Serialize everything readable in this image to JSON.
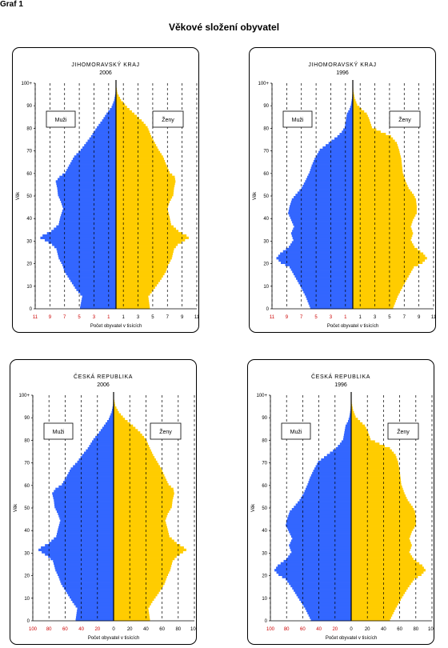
{
  "page": {
    "label": "Graf 1",
    "title": "Věkové složení obyvatel"
  },
  "colors": {
    "men": "#3366ff",
    "women": "#ffcc00",
    "axis": "#000000",
    "grid": "#000000",
    "tick_label_left": "#cc0000"
  },
  "chart_data": [
    {
      "type": "population-pyramid",
      "title": "JIHOMORAVSKÝ KRAJ",
      "subtitle": "2006",
      "xlabel": "Počet obyvatel v tisících",
      "ylabel": "Věk",
      "unit": "thousands",
      "xlim": [
        -11,
        11
      ],
      "xticks": [
        -11,
        -9,
        -7,
        -5,
        -3,
        -1,
        1,
        3,
        5,
        7,
        9,
        11
      ],
      "xtick_labels": [
        "11",
        "9",
        "7",
        "5",
        "3",
        "1",
        "1",
        "3",
        "5",
        "7",
        "9",
        "11"
      ],
      "ylim": [
        0,
        100
      ],
      "yticks": [
        0,
        10,
        20,
        30,
        40,
        50,
        60,
        70,
        80,
        90,
        100
      ],
      "ytick_labels": [
        "0",
        "10",
        "20",
        "30",
        "40",
        "50",
        "60",
        "70",
        "80",
        "90",
        "100+"
      ],
      "grid": "vertical dashed",
      "legend": {
        "men": "Muži",
        "women": "Ženy"
      },
      "men": [
        [
          0,
          4.9
        ],
        [
          5,
          4.6
        ],
        [
          8,
          5.4
        ],
        [
          12,
          6.2
        ],
        [
          16,
          7.0
        ],
        [
          19,
          7.3
        ],
        [
          22,
          7.8
        ],
        [
          26,
          8.1
        ],
        [
          28,
          8.7
        ],
        [
          30,
          9.7
        ],
        [
          31,
          10.3
        ],
        [
          32,
          10.0
        ],
        [
          34,
          8.8
        ],
        [
          37,
          7.8
        ],
        [
          40,
          7.6
        ],
        [
          44,
          7.2
        ],
        [
          47,
          7.5
        ],
        [
          50,
          7.9
        ],
        [
          53,
          8.0
        ],
        [
          56,
          8.2
        ],
        [
          58,
          7.7
        ],
        [
          60,
          6.9
        ],
        [
          63,
          6.4
        ],
        [
          67,
          5.7
        ],
        [
          70,
          4.8
        ],
        [
          73,
          4.1
        ],
        [
          76,
          3.4
        ],
        [
          80,
          2.6
        ],
        [
          83,
          1.9
        ],
        [
          86,
          1.3
        ],
        [
          89,
          0.6
        ],
        [
          92,
          0.25
        ],
        [
          95,
          0.08
        ],
        [
          98,
          0.02
        ],
        [
          100,
          0.01
        ]
      ],
      "women": [
        [
          0,
          4.6
        ],
        [
          5,
          4.4
        ],
        [
          8,
          5.1
        ],
        [
          12,
          6.0
        ],
        [
          16,
          6.8
        ],
        [
          19,
          7.1
        ],
        [
          22,
          7.6
        ],
        [
          26,
          7.9
        ],
        [
          28,
          8.4
        ],
        [
          30,
          9.4
        ],
        [
          31,
          9.9
        ],
        [
          32,
          9.6
        ],
        [
          34,
          8.5
        ],
        [
          37,
          7.5
        ],
        [
          40,
          7.3
        ],
        [
          44,
          7.0
        ],
        [
          47,
          7.3
        ],
        [
          50,
          7.8
        ],
        [
          53,
          7.9
        ],
        [
          56,
          8.1
        ],
        [
          58,
          8.0
        ],
        [
          60,
          7.3
        ],
        [
          63,
          6.9
        ],
        [
          67,
          6.4
        ],
        [
          70,
          5.8
        ],
        [
          73,
          5.3
        ],
        [
          76,
          4.8
        ],
        [
          80,
          4.3
        ],
        [
          83,
          3.5
        ],
        [
          86,
          2.5
        ],
        [
          89,
          1.5
        ],
        [
          92,
          0.7
        ],
        [
          95,
          0.2
        ],
        [
          98,
          0.05
        ],
        [
          100,
          0.02
        ]
      ]
    },
    {
      "type": "population-pyramid",
      "title": "JIHOMORAVSKÝ KRAJ",
      "subtitle": "1996",
      "xlabel": "Počet obyvatel v tisících",
      "ylabel": "Věk",
      "unit": "thousands",
      "xlim": [
        -11,
        11
      ],
      "xticks": [
        -11,
        -9,
        -7,
        -5,
        -3,
        -1,
        1,
        3,
        5,
        7,
        9,
        11
      ],
      "xtick_labels": [
        "11",
        "9",
        "7",
        "5",
        "3",
        "1",
        "1",
        "3",
        "5",
        "7",
        "9",
        "11"
      ],
      "ylim": [
        0,
        100
      ],
      "yticks": [
        0,
        10,
        20,
        30,
        40,
        50,
        60,
        70,
        80,
        90,
        100
      ],
      "ytick_labels": [
        "0",
        "10",
        "20",
        "30",
        "40",
        "50",
        "60",
        "70",
        "80",
        "90",
        "100+"
      ],
      "grid": "vertical dashed",
      "legend": {
        "men": "Muži",
        "women": "Ženy"
      },
      "men": [
        [
          0,
          5.8
        ],
        [
          5,
          6.4
        ],
        [
          10,
          7.2
        ],
        [
          14,
          7.9
        ],
        [
          18,
          8.6
        ],
        [
          20,
          9.8
        ],
        [
          22,
          10.4
        ],
        [
          24,
          9.9
        ],
        [
          27,
          8.7
        ],
        [
          30,
          8.1
        ],
        [
          33,
          8.4
        ],
        [
          36,
          8.0
        ],
        [
          39,
          8.4
        ],
        [
          42,
          8.8
        ],
        [
          45,
          8.6
        ],
        [
          48,
          8.3
        ],
        [
          50,
          7.8
        ],
        [
          53,
          7.0
        ],
        [
          56,
          6.5
        ],
        [
          60,
          5.9
        ],
        [
          63,
          5.6
        ],
        [
          66,
          5.2
        ],
        [
          70,
          4.5
        ],
        [
          73,
          3.3
        ],
        [
          76,
          2.1
        ],
        [
          78,
          1.5
        ],
        [
          80,
          1.1
        ],
        [
          82,
          1.0
        ],
        [
          84,
          0.9
        ],
        [
          86,
          0.8
        ],
        [
          88,
          0.45
        ],
        [
          90,
          0.25
        ],
        [
          93,
          0.1
        ],
        [
          96,
          0.03
        ],
        [
          100,
          0.01
        ]
      ],
      "women": [
        [
          0,
          5.5
        ],
        [
          5,
          6.1
        ],
        [
          10,
          6.9
        ],
        [
          14,
          7.6
        ],
        [
          18,
          8.3
        ],
        [
          20,
          9.5
        ],
        [
          22,
          10.1
        ],
        [
          24,
          9.6
        ],
        [
          27,
          8.4
        ],
        [
          30,
          7.9
        ],
        [
          33,
          8.2
        ],
        [
          36,
          7.9
        ],
        [
          39,
          8.2
        ],
        [
          42,
          8.7
        ],
        [
          45,
          8.7
        ],
        [
          48,
          8.6
        ],
        [
          50,
          8.3
        ],
        [
          53,
          7.6
        ],
        [
          56,
          7.2
        ],
        [
          60,
          6.8
        ],
        [
          63,
          6.7
        ],
        [
          66,
          6.6
        ],
        [
          70,
          6.3
        ],
        [
          73,
          6.0
        ],
        [
          76,
          5.2
        ],
        [
          78,
          3.8
        ],
        [
          80,
          2.6
        ],
        [
          82,
          2.4
        ],
        [
          84,
          2.2
        ],
        [
          86,
          1.9
        ],
        [
          88,
          1.2
        ],
        [
          90,
          0.6
        ],
        [
          93,
          0.25
        ],
        [
          96,
          0.08
        ],
        [
          100,
          0.02
        ]
      ]
    },
    {
      "type": "population-pyramid",
      "title": "ČESKÁ REPUBLIKA",
      "subtitle": "2006",
      "xlabel": "Počet obyvatel v tisících",
      "ylabel": "Věk",
      "unit": "thousands",
      "xlim": [
        -100,
        100
      ],
      "xticks": [
        -100,
        -80,
        -60,
        -40,
        -20,
        0,
        20,
        40,
        60,
        80,
        100
      ],
      "xtick_labels": [
        "100",
        "80",
        "60",
        "40",
        "20",
        "0",
        "20",
        "40",
        "60",
        "80",
        "100"
      ],
      "ylim": [
        0,
        100
      ],
      "yticks": [
        0,
        10,
        20,
        30,
        40,
        50,
        60,
        70,
        80,
        90,
        100
      ],
      "ytick_labels": [
        "0",
        "10",
        "20",
        "30",
        "40",
        "50",
        "60",
        "70",
        "80",
        "90",
        "100+"
      ],
      "grid": "vertical dashed",
      "legend": {
        "men": "Muži",
        "women": "Ženy"
      },
      "men": [
        [
          0,
          47
        ],
        [
          5,
          45
        ],
        [
          8,
          51
        ],
        [
          12,
          58
        ],
        [
          16,
          65
        ],
        [
          19,
          68
        ],
        [
          22,
          72
        ],
        [
          26,
          75
        ],
        [
          28,
          81
        ],
        [
          30,
          89
        ],
        [
          31,
          93
        ],
        [
          32,
          90
        ],
        [
          34,
          80
        ],
        [
          37,
          71
        ],
        [
          40,
          69
        ],
        [
          44,
          66
        ],
        [
          47,
          69
        ],
        [
          50,
          73
        ],
        [
          53,
          74
        ],
        [
          56,
          76
        ],
        [
          58,
          72
        ],
        [
          60,
          64
        ],
        [
          63,
          59
        ],
        [
          67,
          53
        ],
        [
          70,
          45
        ],
        [
          73,
          39
        ],
        [
          76,
          32
        ],
        [
          80,
          25
        ],
        [
          83,
          18
        ],
        [
          86,
          12
        ],
        [
          89,
          6
        ],
        [
          92,
          2.5
        ],
        [
          95,
          0.8
        ],
        [
          98,
          0.2
        ],
        [
          100,
          0.1
        ]
      ],
      "women": [
        [
          0,
          45
        ],
        [
          5,
          43
        ],
        [
          8,
          48
        ],
        [
          12,
          56
        ],
        [
          16,
          63
        ],
        [
          19,
          66
        ],
        [
          22,
          70
        ],
        [
          26,
          73
        ],
        [
          28,
          78
        ],
        [
          30,
          86
        ],
        [
          31,
          90
        ],
        [
          32,
          87
        ],
        [
          34,
          78
        ],
        [
          37,
          69
        ],
        [
          40,
          67
        ],
        [
          44,
          64
        ],
        [
          47,
          67
        ],
        [
          50,
          72
        ],
        [
          53,
          73
        ],
        [
          56,
          75
        ],
        [
          58,
          74
        ],
        [
          60,
          68
        ],
        [
          63,
          64
        ],
        [
          67,
          59
        ],
        [
          70,
          54
        ],
        [
          73,
          49
        ],
        [
          76,
          45
        ],
        [
          80,
          40
        ],
        [
          83,
          33
        ],
        [
          86,
          24
        ],
        [
          89,
          14
        ],
        [
          92,
          6.5
        ],
        [
          95,
          2
        ],
        [
          98,
          0.5
        ],
        [
          100,
          0.2
        ]
      ]
    },
    {
      "type": "population-pyramid",
      "title": "ČESKÁ REPUBLIKA",
      "subtitle": "1996",
      "xlabel": "Počet obyvatel v tisících",
      "ylabel": "Věk",
      "unit": "thousands",
      "xlim": [
        -100,
        100
      ],
      "xticks": [
        -100,
        -80,
        -60,
        -40,
        -20,
        0,
        20,
        40,
        60,
        80,
        100
      ],
      "xtick_labels": [
        "100",
        "80",
        "60",
        "40",
        "20",
        "0",
        "20",
        "40",
        "60",
        "80",
        "100"
      ],
      "ylim": [
        0,
        100
      ],
      "yticks": [
        0,
        10,
        20,
        30,
        40,
        50,
        60,
        70,
        80,
        90,
        100
      ],
      "ytick_labels": [
        "0",
        "10",
        "20",
        "30",
        "40",
        "50",
        "60",
        "70",
        "80",
        "90",
        "100+"
      ],
      "grid": "vertical dashed",
      "legend": {
        "men": "Muži",
        "women": "Ženy"
      },
      "men": [
        [
          0,
          50
        ],
        [
          5,
          57
        ],
        [
          10,
          66
        ],
        [
          14,
          73
        ],
        [
          18,
          81
        ],
        [
          20,
          90
        ],
        [
          22,
          95
        ],
        [
          24,
          91
        ],
        [
          27,
          80
        ],
        [
          30,
          74
        ],
        [
          33,
          77
        ],
        [
          36,
          73
        ],
        [
          39,
          77
        ],
        [
          42,
          81
        ],
        [
          45,
          79
        ],
        [
          48,
          76
        ],
        [
          50,
          71
        ],
        [
          53,
          64
        ],
        [
          56,
          59
        ],
        [
          60,
          54
        ],
        [
          63,
          51
        ],
        [
          66,
          47
        ],
        [
          70,
          41
        ],
        [
          73,
          30
        ],
        [
          76,
          19
        ],
        [
          78,
          14
        ],
        [
          80,
          10
        ],
        [
          82,
          9
        ],
        [
          84,
          8
        ],
        [
          86,
          7
        ],
        [
          88,
          4
        ],
        [
          90,
          2.3
        ],
        [
          93,
          0.9
        ],
        [
          96,
          0.3
        ],
        [
          100,
          0.1
        ]
      ],
      "women": [
        [
          0,
          48
        ],
        [
          5,
          55
        ],
        [
          10,
          63
        ],
        [
          14,
          70
        ],
        [
          18,
          78
        ],
        [
          20,
          87
        ],
        [
          22,
          92
        ],
        [
          24,
          88
        ],
        [
          27,
          77
        ],
        [
          30,
          72
        ],
        [
          33,
          75
        ],
        [
          36,
          72
        ],
        [
          39,
          75
        ],
        [
          42,
          80
        ],
        [
          45,
          80
        ],
        [
          48,
          79
        ],
        [
          50,
          76
        ],
        [
          53,
          70
        ],
        [
          56,
          66
        ],
        [
          60,
          62
        ],
        [
          63,
          61
        ],
        [
          66,
          60
        ],
        [
          70,
          58
        ],
        [
          73,
          55
        ],
        [
          76,
          48
        ],
        [
          78,
          35
        ],
        [
          80,
          24
        ],
        [
          82,
          22
        ],
        [
          84,
          20
        ],
        [
          86,
          17
        ],
        [
          88,
          11
        ],
        [
          90,
          5.5
        ],
        [
          93,
          2.3
        ],
        [
          96,
          0.7
        ],
        [
          100,
          0.2
        ]
      ]
    }
  ]
}
